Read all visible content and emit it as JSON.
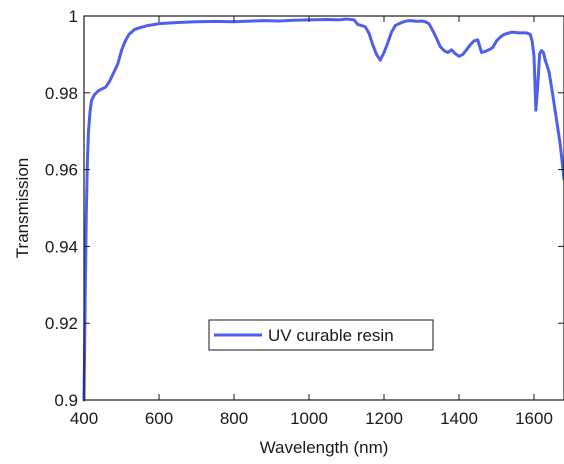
{
  "chart_data": {
    "type": "line",
    "title": "",
    "xlabel": "Wavelength (nm)",
    "ylabel": "Transmission",
    "xlim": [
      400,
      1680
    ],
    "ylim": [
      0.9,
      1.0
    ],
    "xticks": [
      400,
      600,
      800,
      1000,
      1200,
      1400,
      1600
    ],
    "yticks": [
      0.9,
      0.92,
      0.94,
      0.96,
      0.98,
      1.0
    ],
    "xtick_labels": [
      "400",
      "600",
      "800",
      "1000",
      "1200",
      "1400",
      "1600"
    ],
    "ytick_labels": [
      "0.9",
      "0.92",
      "0.94",
      "0.96",
      "0.98",
      "1"
    ],
    "grid": false,
    "legend_position": "lower-center",
    "series": [
      {
        "name": "UV curable resin",
        "color": "#4f5fea",
        "x": [
          400,
          403,
          406,
          409,
          412,
          416,
          420,
          428,
          438,
          448,
          458,
          468,
          478,
          490,
          500,
          510,
          520,
          535,
          550,
          570,
          600,
          650,
          700,
          750,
          800,
          850,
          880,
          920,
          960,
          1000,
          1050,
          1080,
          1100,
          1120,
          1130,
          1140,
          1150,
          1160,
          1170,
          1180,
          1190,
          1200,
          1210,
          1220,
          1230,
          1240,
          1250,
          1260,
          1270,
          1280,
          1290,
          1300,
          1310,
          1320,
          1330,
          1340,
          1350,
          1360,
          1370,
          1380,
          1390,
          1400,
          1410,
          1420,
          1430,
          1440,
          1450,
          1460,
          1470,
          1480,
          1490,
          1500,
          1510,
          1520,
          1530,
          1540,
          1550,
          1560,
          1570,
          1580,
          1590,
          1595,
          1600,
          1605,
          1610,
          1615,
          1620,
          1625,
          1630,
          1640,
          1650,
          1660,
          1670,
          1680
        ],
        "y": [
          0.9,
          0.925,
          0.948,
          0.962,
          0.97,
          0.975,
          0.978,
          0.9795,
          0.9805,
          0.981,
          0.9815,
          0.983,
          0.985,
          0.9875,
          0.991,
          0.9935,
          0.9952,
          0.9965,
          0.997,
          0.9975,
          0.998,
          0.9983,
          0.9985,
          0.9986,
          0.9985,
          0.9987,
          0.9988,
          0.9987,
          0.9989,
          0.999,
          0.9991,
          0.999,
          0.9992,
          0.999,
          0.9978,
          0.9975,
          0.9972,
          0.9955,
          0.9925,
          0.99,
          0.9885,
          0.9905,
          0.993,
          0.9958,
          0.9975,
          0.998,
          0.9984,
          0.9987,
          0.9988,
          0.9987,
          0.9986,
          0.9987,
          0.9985,
          0.998,
          0.9962,
          0.9942,
          0.992,
          0.991,
          0.9905,
          0.9912,
          0.9902,
          0.9895,
          0.99,
          0.9912,
          0.9925,
          0.9935,
          0.9938,
          0.9905,
          0.9908,
          0.9912,
          0.9918,
          0.9935,
          0.9945,
          0.9952,
          0.9955,
          0.9958,
          0.9957,
          0.9956,
          0.9956,
          0.9956,
          0.9952,
          0.9935,
          0.9895,
          0.9755,
          0.982,
          0.9902,
          0.991,
          0.9905,
          0.9885,
          0.9855,
          0.9795,
          0.973,
          0.9665,
          0.9575
        ]
      }
    ]
  }
}
